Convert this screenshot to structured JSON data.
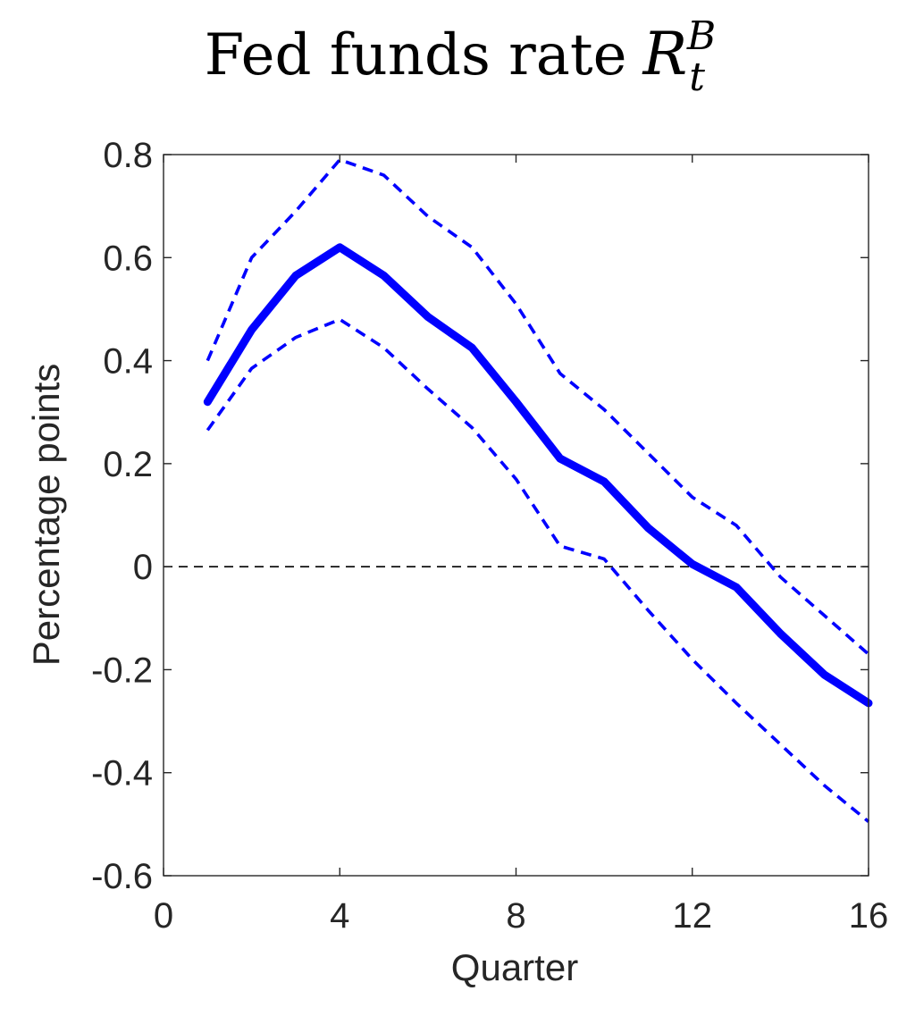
{
  "chart_data": {
    "type": "line",
    "title": {
      "text": "Fed funds rate",
      "symbol": "R",
      "symbol_subscript": "t",
      "symbol_superscript": "B"
    },
    "xlabel": "Quarter",
    "ylabel": "Percentage points",
    "xlim": [
      0,
      16
    ],
    "ylim": [
      -0.6,
      0.8
    ],
    "xticks": [
      0,
      4,
      8,
      12,
      16
    ],
    "xtick_labels": [
      "0",
      "4",
      "8",
      "12",
      "16"
    ],
    "yticks": [
      -0.6,
      -0.4,
      -0.2,
      0,
      0.2,
      0.4,
      0.6,
      0.8
    ],
    "ytick_labels": [
      "-0.6",
      "-0.4",
      "-0.2",
      "0",
      "0.2",
      "0.4",
      "0.6",
      "0.8"
    ],
    "grid": false,
    "x": [
      1,
      2,
      3,
      4,
      5,
      6,
      7,
      8,
      9,
      10,
      11,
      12,
      13,
      14,
      15,
      16
    ],
    "series": [
      {
        "style": "solid-thick",
        "values": [
          0.32,
          0.46,
          0.565,
          0.62,
          0.565,
          0.485,
          0.425,
          0.32,
          0.21,
          0.165,
          0.075,
          0.005,
          -0.04,
          -0.13,
          -0.21,
          -0.265
        ]
      },
      {
        "style": "dashed",
        "values": [
          0.4,
          0.6,
          0.69,
          0.79,
          0.76,
          0.68,
          0.62,
          0.51,
          0.375,
          0.305,
          0.22,
          0.135,
          0.08,
          -0.02,
          -0.095,
          -0.17
        ]
      },
      {
        "style": "dashed",
        "values": [
          0.265,
          0.385,
          0.445,
          0.48,
          0.425,
          0.345,
          0.27,
          0.17,
          0.04,
          0.015,
          -0.085,
          -0.18,
          -0.265,
          -0.345,
          -0.425,
          -0.495
        ]
      }
    ],
    "reference_line": {
      "y": 0,
      "style": "dashed",
      "color": "#000000"
    },
    "colors": {
      "series": "#0000ff",
      "axis": "#262626"
    }
  }
}
